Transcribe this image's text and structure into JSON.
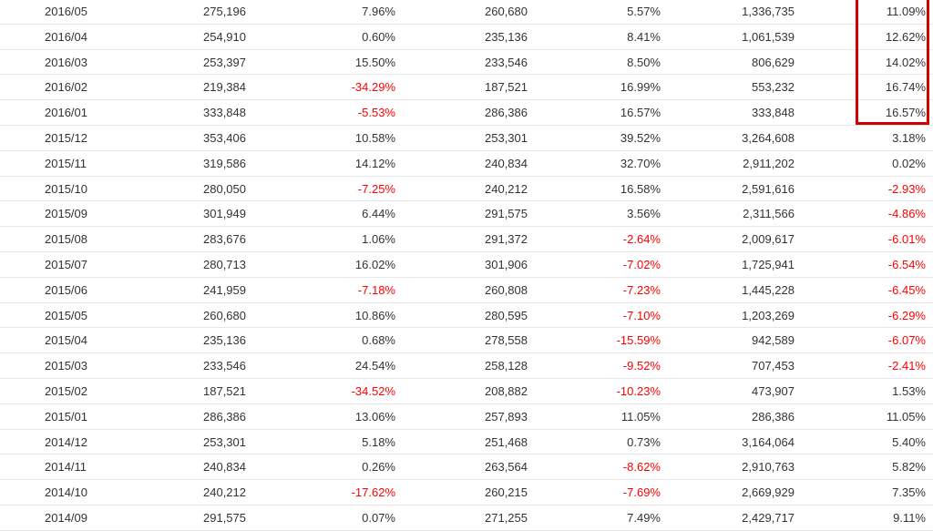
{
  "table": {
    "rows": [
      {
        "month": "2016/05",
        "sales": "275,196",
        "mom": "7.96%",
        "prev_year": "260,680",
        "yoy": "5.57%",
        "cumulative": "1,336,735",
        "cum_yoy": "11.09%"
      },
      {
        "month": "2016/04",
        "sales": "254,910",
        "mom": "0.60%",
        "prev_year": "235,136",
        "yoy": "8.41%",
        "cumulative": "1,061,539",
        "cum_yoy": "12.62%"
      },
      {
        "month": "2016/03",
        "sales": "253,397",
        "mom": "15.50%",
        "prev_year": "233,546",
        "yoy": "8.50%",
        "cumulative": "806,629",
        "cum_yoy": "14.02%"
      },
      {
        "month": "2016/02",
        "sales": "219,384",
        "mom": "-34.29%",
        "prev_year": "187,521",
        "yoy": "16.99%",
        "cumulative": "553,232",
        "cum_yoy": "16.74%"
      },
      {
        "month": "2016/01",
        "sales": "333,848",
        "mom": "-5.53%",
        "prev_year": "286,386",
        "yoy": "16.57%",
        "cumulative": "333,848",
        "cum_yoy": "16.57%"
      },
      {
        "month": "2015/12",
        "sales": "353,406",
        "mom": "10.58%",
        "prev_year": "253,301",
        "yoy": "39.52%",
        "cumulative": "3,264,608",
        "cum_yoy": "3.18%"
      },
      {
        "month": "2015/11",
        "sales": "319,586",
        "mom": "14.12%",
        "prev_year": "240,834",
        "yoy": "32.70%",
        "cumulative": "2,911,202",
        "cum_yoy": "0.02%"
      },
      {
        "month": "2015/10",
        "sales": "280,050",
        "mom": "-7.25%",
        "prev_year": "240,212",
        "yoy": "16.58%",
        "cumulative": "2,591,616",
        "cum_yoy": "-2.93%"
      },
      {
        "month": "2015/09",
        "sales": "301,949",
        "mom": "6.44%",
        "prev_year": "291,575",
        "yoy": "3.56%",
        "cumulative": "2,311,566",
        "cum_yoy": "-4.86%"
      },
      {
        "month": "2015/08",
        "sales": "283,676",
        "mom": "1.06%",
        "prev_year": "291,372",
        "yoy": "-2.64%",
        "cumulative": "2,009,617",
        "cum_yoy": "-6.01%"
      },
      {
        "month": "2015/07",
        "sales": "280,713",
        "mom": "16.02%",
        "prev_year": "301,906",
        "yoy": "-7.02%",
        "cumulative": "1,725,941",
        "cum_yoy": "-6.54%"
      },
      {
        "month": "2015/06",
        "sales": "241,959",
        "mom": "-7.18%",
        "prev_year": "260,808",
        "yoy": "-7.23%",
        "cumulative": "1,445,228",
        "cum_yoy": "-6.45%"
      },
      {
        "month": "2015/05",
        "sales": "260,680",
        "mom": "10.86%",
        "prev_year": "280,595",
        "yoy": "-7.10%",
        "cumulative": "1,203,269",
        "cum_yoy": "-6.29%"
      },
      {
        "month": "2015/04",
        "sales": "235,136",
        "mom": "0.68%",
        "prev_year": "278,558",
        "yoy": "-15.59%",
        "cumulative": "942,589",
        "cum_yoy": "-6.07%"
      },
      {
        "month": "2015/03",
        "sales": "233,546",
        "mom": "24.54%",
        "prev_year": "258,128",
        "yoy": "-9.52%",
        "cumulative": "707,453",
        "cum_yoy": "-2.41%"
      },
      {
        "month": "2015/02",
        "sales": "187,521",
        "mom": "-34.52%",
        "prev_year": "208,882",
        "yoy": "-10.23%",
        "cumulative": "473,907",
        "cum_yoy": "1.53%"
      },
      {
        "month": "2015/01",
        "sales": "286,386",
        "mom": "13.06%",
        "prev_year": "257,893",
        "yoy": "11.05%",
        "cumulative": "286,386",
        "cum_yoy": "11.05%"
      },
      {
        "month": "2014/12",
        "sales": "253,301",
        "mom": "5.18%",
        "prev_year": "251,468",
        "yoy": "0.73%",
        "cumulative": "3,164,064",
        "cum_yoy": "5.40%"
      },
      {
        "month": "2014/11",
        "sales": "240,834",
        "mom": "0.26%",
        "prev_year": "263,564",
        "yoy": "-8.62%",
        "cumulative": "2,910,763",
        "cum_yoy": "5.82%"
      },
      {
        "month": "2014/10",
        "sales": "240,212",
        "mom": "-17.62%",
        "prev_year": "260,215",
        "yoy": "-7.69%",
        "cumulative": "2,669,929",
        "cum_yoy": "7.35%"
      },
      {
        "month": "2014/09",
        "sales": "291,575",
        "mom": "0.07%",
        "prev_year": "271,255",
        "yoy": "7.49%",
        "cumulative": "2,429,717",
        "cum_yoy": "9.11%"
      }
    ]
  },
  "colors": {
    "text": "#333333",
    "negative": "#ff0000",
    "highlight_border": "#d00000",
    "row_divider": "#e6e6e6"
  }
}
